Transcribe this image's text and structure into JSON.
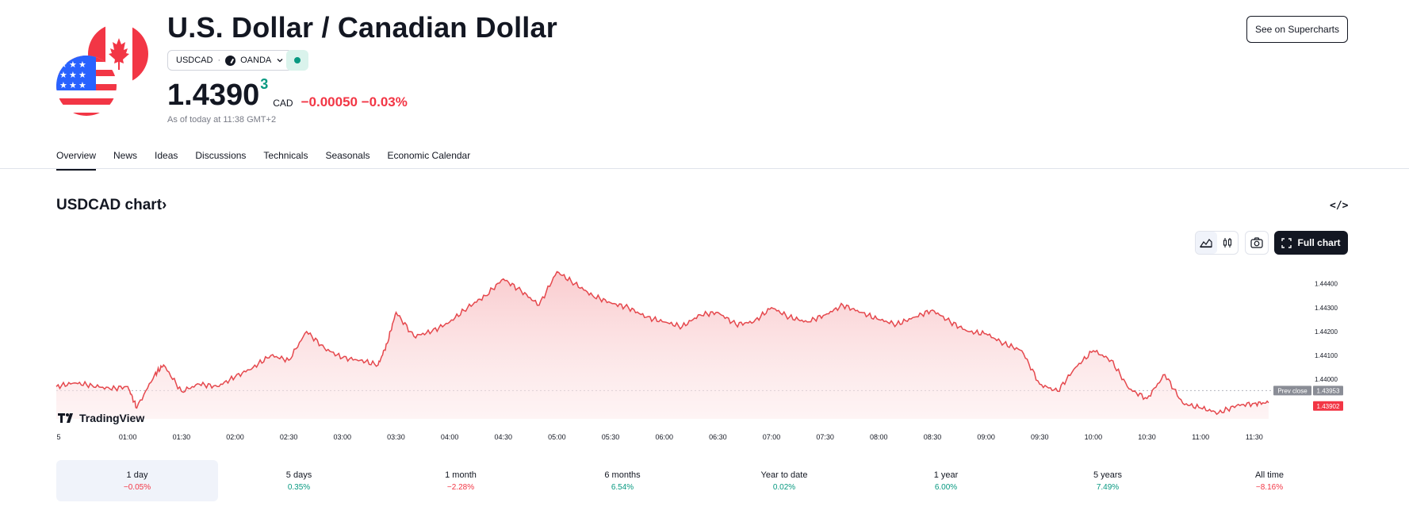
{
  "header": {
    "title": "U.S. Dollar / Canadian Dollar",
    "symbol": "USDCAD",
    "exchange": "OANDA",
    "price_main": "1.4390",
    "price_sup": "3",
    "currency": "CAD",
    "change": "−0.00050",
    "change_pct": "−0.03%",
    "as_of": "As of today at 11:38 GMT+2",
    "see_supercharts": "See on Supercharts"
  },
  "tabs": [
    "Overview",
    "News",
    "Ideas",
    "Discussions",
    "Technicals",
    "Seasonals",
    "Economic Calendar"
  ],
  "section": {
    "title": "USDCAD chart",
    "title_chevron": "›",
    "embed_label": "</>",
    "full_chart": "Full chart",
    "brand": "TradingView"
  },
  "colors": {
    "line": "#e5484d",
    "fill_top": "#f9c9cc",
    "negative": "#f23645",
    "positive": "#089981",
    "prev_close_bg": "#8a8d96"
  },
  "chart_data": {
    "type": "area",
    "x_ticks": [
      "5",
      "01:00",
      "01:30",
      "02:00",
      "02:30",
      "03:00",
      "03:30",
      "04:00",
      "04:30",
      "05:00",
      "05:30",
      "06:00",
      "06:30",
      "07:00",
      "07:30",
      "08:00",
      "08:30",
      "09:00",
      "09:30",
      "10:00",
      "10:30",
      "11:00",
      "11:30"
    ],
    "y_ticks": [
      "1.44400",
      "1.44300",
      "1.44200",
      "1.44100",
      "1.44000"
    ],
    "y_tick_values": [
      1.444,
      1.443,
      1.442,
      1.441,
      1.44
    ],
    "ylim": [
      1.43835,
      1.44475
    ],
    "prev_close_label": "Prev close",
    "prev_close_value": "1.43953",
    "last_value": "1.43902",
    "x": [
      "00:20",
      "00:30",
      "00:40",
      "00:50",
      "01:00",
      "01:05",
      "01:15",
      "01:20",
      "01:30",
      "01:40",
      "01:50",
      "02:00",
      "02:10",
      "02:20",
      "02:30",
      "02:40",
      "02:50",
      "03:00",
      "03:10",
      "03:20",
      "03:25",
      "03:30",
      "03:40",
      "03:50",
      "04:00",
      "04:10",
      "04:20",
      "04:30",
      "04:40",
      "04:50",
      "05:00",
      "05:10",
      "05:20",
      "05:30",
      "05:40",
      "05:50",
      "06:00",
      "06:10",
      "06:20",
      "06:30",
      "06:40",
      "06:50",
      "07:00",
      "07:10",
      "07:20",
      "07:30",
      "07:40",
      "07:50",
      "08:00",
      "08:10",
      "08:20",
      "08:30",
      "08:40",
      "08:50",
      "09:00",
      "09:10",
      "09:20",
      "09:30",
      "09:40",
      "09:50",
      "10:00",
      "10:10",
      "10:20",
      "10:30",
      "10:40",
      "10:50",
      "11:00",
      "11:10",
      "11:20",
      "11:30",
      "11:38"
    ],
    "values": [
      1.4397,
      1.43985,
      1.43975,
      1.4396,
      1.4397,
      1.4388,
      1.4402,
      1.4406,
      1.4395,
      1.4398,
      1.4397,
      1.4401,
      1.4405,
      1.441,
      1.4408,
      1.442,
      1.4413,
      1.4409,
      1.4408,
      1.4406,
      1.4415,
      1.4428,
      1.4418,
      1.442,
      1.4424,
      1.443,
      1.4435,
      1.4442,
      1.4437,
      1.4431,
      1.4445,
      1.444,
      1.4435,
      1.4432,
      1.443,
      1.4426,
      1.4424,
      1.4422,
      1.4427,
      1.4428,
      1.4423,
      1.4424,
      1.443,
      1.4426,
      1.4424,
      1.4427,
      1.4431,
      1.4428,
      1.4425,
      1.4423,
      1.4426,
      1.4429,
      1.4424,
      1.442,
      1.4419,
      1.4415,
      1.4412,
      1.4398,
      1.4395,
      1.4405,
      1.4412,
      1.4408,
      1.4396,
      1.4392,
      1.4402,
      1.439,
      1.4388,
      1.4386,
      1.4389,
      1.439,
      1.43902
    ]
  },
  "periods": [
    {
      "label": "1 day",
      "value": "−0.05%",
      "sign": "neg",
      "active": true
    },
    {
      "label": "5 days",
      "value": "0.35%",
      "sign": "pos"
    },
    {
      "label": "1 month",
      "value": "−2.28%",
      "sign": "neg"
    },
    {
      "label": "6 months",
      "value": "6.54%",
      "sign": "pos"
    },
    {
      "label": "Year to date",
      "value": "0.02%",
      "sign": "pos"
    },
    {
      "label": "1 year",
      "value": "6.00%",
      "sign": "pos"
    },
    {
      "label": "5 years",
      "value": "7.49%",
      "sign": "pos"
    },
    {
      "label": "All time",
      "value": "−8.16%",
      "sign": "neg"
    }
  ]
}
